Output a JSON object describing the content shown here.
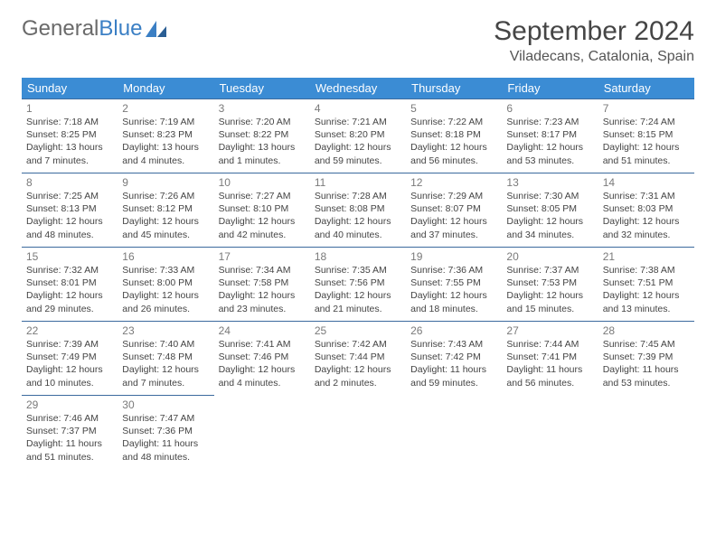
{
  "logo": {
    "part1": "General",
    "part2": "Blue"
  },
  "title": "September 2024",
  "location": "Viladecans, Catalonia, Spain",
  "day_headers": [
    "Sunday",
    "Monday",
    "Tuesday",
    "Wednesday",
    "Thursday",
    "Friday",
    "Saturday"
  ],
  "colors": {
    "header_bg": "#3b8cd4",
    "header_text": "#ffffff",
    "row_border": "#3b6a9e",
    "logo_gray": "#6a6a6a",
    "logo_blue": "#3b7fc4"
  },
  "weeks": [
    [
      {
        "n": "1",
        "sr": "7:18 AM",
        "ss": "8:25 PM",
        "dl": "13 hours and 7 minutes."
      },
      {
        "n": "2",
        "sr": "7:19 AM",
        "ss": "8:23 PM",
        "dl": "13 hours and 4 minutes."
      },
      {
        "n": "3",
        "sr": "7:20 AM",
        "ss": "8:22 PM",
        "dl": "13 hours and 1 minutes."
      },
      {
        "n": "4",
        "sr": "7:21 AM",
        "ss": "8:20 PM",
        "dl": "12 hours and 59 minutes."
      },
      {
        "n": "5",
        "sr": "7:22 AM",
        "ss": "8:18 PM",
        "dl": "12 hours and 56 minutes."
      },
      {
        "n": "6",
        "sr": "7:23 AM",
        "ss": "8:17 PM",
        "dl": "12 hours and 53 minutes."
      },
      {
        "n": "7",
        "sr": "7:24 AM",
        "ss": "8:15 PM",
        "dl": "12 hours and 51 minutes."
      }
    ],
    [
      {
        "n": "8",
        "sr": "7:25 AM",
        "ss": "8:13 PM",
        "dl": "12 hours and 48 minutes."
      },
      {
        "n": "9",
        "sr": "7:26 AM",
        "ss": "8:12 PM",
        "dl": "12 hours and 45 minutes."
      },
      {
        "n": "10",
        "sr": "7:27 AM",
        "ss": "8:10 PM",
        "dl": "12 hours and 42 minutes."
      },
      {
        "n": "11",
        "sr": "7:28 AM",
        "ss": "8:08 PM",
        "dl": "12 hours and 40 minutes."
      },
      {
        "n": "12",
        "sr": "7:29 AM",
        "ss": "8:07 PM",
        "dl": "12 hours and 37 minutes."
      },
      {
        "n": "13",
        "sr": "7:30 AM",
        "ss": "8:05 PM",
        "dl": "12 hours and 34 minutes."
      },
      {
        "n": "14",
        "sr": "7:31 AM",
        "ss": "8:03 PM",
        "dl": "12 hours and 32 minutes."
      }
    ],
    [
      {
        "n": "15",
        "sr": "7:32 AM",
        "ss": "8:01 PM",
        "dl": "12 hours and 29 minutes."
      },
      {
        "n": "16",
        "sr": "7:33 AM",
        "ss": "8:00 PM",
        "dl": "12 hours and 26 minutes."
      },
      {
        "n": "17",
        "sr": "7:34 AM",
        "ss": "7:58 PM",
        "dl": "12 hours and 23 minutes."
      },
      {
        "n": "18",
        "sr": "7:35 AM",
        "ss": "7:56 PM",
        "dl": "12 hours and 21 minutes."
      },
      {
        "n": "19",
        "sr": "7:36 AM",
        "ss": "7:55 PM",
        "dl": "12 hours and 18 minutes."
      },
      {
        "n": "20",
        "sr": "7:37 AM",
        "ss": "7:53 PM",
        "dl": "12 hours and 15 minutes."
      },
      {
        "n": "21",
        "sr": "7:38 AM",
        "ss": "7:51 PM",
        "dl": "12 hours and 13 minutes."
      }
    ],
    [
      {
        "n": "22",
        "sr": "7:39 AM",
        "ss": "7:49 PM",
        "dl": "12 hours and 10 minutes."
      },
      {
        "n": "23",
        "sr": "7:40 AM",
        "ss": "7:48 PM",
        "dl": "12 hours and 7 minutes."
      },
      {
        "n": "24",
        "sr": "7:41 AM",
        "ss": "7:46 PM",
        "dl": "12 hours and 4 minutes."
      },
      {
        "n": "25",
        "sr": "7:42 AM",
        "ss": "7:44 PM",
        "dl": "12 hours and 2 minutes."
      },
      {
        "n": "26",
        "sr": "7:43 AM",
        "ss": "7:42 PM",
        "dl": "11 hours and 59 minutes."
      },
      {
        "n": "27",
        "sr": "7:44 AM",
        "ss": "7:41 PM",
        "dl": "11 hours and 56 minutes."
      },
      {
        "n": "28",
        "sr": "7:45 AM",
        "ss": "7:39 PM",
        "dl": "11 hours and 53 minutes."
      }
    ],
    [
      {
        "n": "29",
        "sr": "7:46 AM",
        "ss": "7:37 PM",
        "dl": "11 hours and 51 minutes."
      },
      {
        "n": "30",
        "sr": "7:47 AM",
        "ss": "7:36 PM",
        "dl": "11 hours and 48 minutes."
      },
      null,
      null,
      null,
      null,
      null
    ]
  ]
}
